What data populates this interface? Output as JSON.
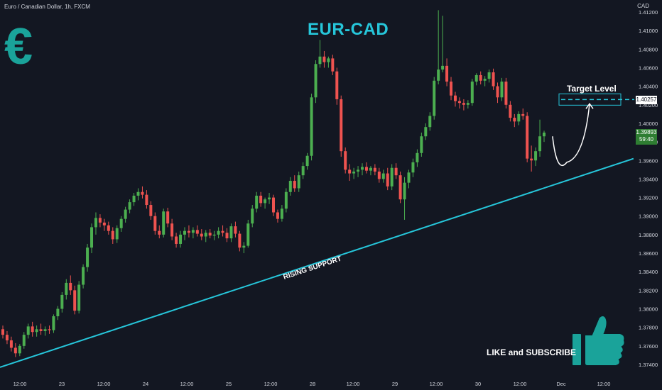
{
  "header": {
    "symbol_title": "Euro / Canadian Dollar, 1h, FXCM"
  },
  "axis": {
    "unit": "CAD"
  },
  "overlay": {
    "title": "EUR-CAD",
    "currency_glyph": "€",
    "target_label": "Target Level",
    "support_label": "RISING SUPPORT",
    "cta": "LIKE and SUBSCRIBE",
    "thumbs_up_icon": "thumbs-up-icon"
  },
  "badges": {
    "target_price": "1.40257",
    "current_price": "1.39893",
    "countdown": "59:40"
  },
  "colors": {
    "background": "#131722",
    "up": "#4caf50",
    "down": "#ef5350",
    "accent": "#26c6da",
    "teal": "#1aa39a",
    "text": "#d1d4dc"
  },
  "chart_data": {
    "type": "candlestick",
    "ylim": [
      1.3735,
      1.4125
    ],
    "y_ticks": [
      "1.41200",
      "1.41000",
      "1.40800",
      "1.40600",
      "1.40400",
      "1.40200",
      "1.40000",
      "1.39800",
      "1.39600",
      "1.39400",
      "1.39200",
      "1.39000",
      "1.38800",
      "1.38600",
      "1.38400",
      "1.38200",
      "1.38000",
      "1.37800",
      "1.37600",
      "1.37400"
    ],
    "x_ticks": [
      "12:00",
      "23",
      "12:00",
      "24",
      "12:00",
      "25",
      "12:00",
      "28",
      "12:00",
      "29",
      "12:00",
      "30",
      "12:00",
      "Dec",
      "12:00"
    ],
    "target_level": 1.40257,
    "last_price": 1.39893,
    "support_line": {
      "start": [
        0,
        1.3737
      ],
      "end": [
        131,
        1.3962
      ]
    },
    "projection": {
      "from": [
        130,
        1.3986
      ],
      "low": [
        136,
        1.3958
      ],
      "to": [
        141,
        1.4026
      ]
    },
    "ohlc": [
      [
        1.3778,
        1.3782,
        1.3768,
        1.3772
      ],
      [
        1.3772,
        1.3776,
        1.3762,
        1.3766
      ],
      [
        1.3766,
        1.377,
        1.3754,
        1.3758
      ],
      [
        1.3758,
        1.3763,
        1.3748,
        1.3752
      ],
      [
        1.3752,
        1.3762,
        1.3749,
        1.376
      ],
      [
        1.376,
        1.3775,
        1.3757,
        1.3772
      ],
      [
        1.3772,
        1.3784,
        1.3768,
        1.3781
      ],
      [
        1.3781,
        1.3786,
        1.377,
        1.3775
      ],
      [
        1.3775,
        1.3782,
        1.377,
        1.3778
      ],
      [
        1.3778,
        1.3784,
        1.3772,
        1.3776
      ],
      [
        1.3776,
        1.3781,
        1.3771,
        1.3778
      ],
      [
        1.3778,
        1.3782,
        1.3773,
        1.3777
      ],
      [
        1.3777,
        1.3794,
        1.3774,
        1.3792
      ],
      [
        1.3792,
        1.3803,
        1.3788,
        1.38
      ],
      [
        1.38,
        1.3818,
        1.3796,
        1.3815
      ],
      [
        1.3815,
        1.3832,
        1.381,
        1.3828
      ],
      [
        1.3828,
        1.3836,
        1.3815,
        1.382
      ],
      [
        1.382,
        1.3825,
        1.3794,
        1.3798
      ],
      [
        1.3798,
        1.383,
        1.3795,
        1.3826
      ],
      [
        1.3826,
        1.3848,
        1.3822,
        1.3845
      ],
      [
        1.3845,
        1.387,
        1.384,
        1.3866
      ],
      [
        1.3866,
        1.3892,
        1.386,
        1.3888
      ],
      [
        1.3888,
        1.3904,
        1.388,
        1.3898
      ],
      [
        1.3898,
        1.3902,
        1.3888,
        1.3893
      ],
      [
        1.3893,
        1.3897,
        1.3884,
        1.389
      ],
      [
        1.389,
        1.3894,
        1.388,
        1.3884
      ],
      [
        1.3884,
        1.3888,
        1.387,
        1.3875
      ],
      [
        1.3875,
        1.389,
        1.3871,
        1.3887
      ],
      [
        1.3887,
        1.39,
        1.3883,
        1.3897
      ],
      [
        1.3897,
        1.391,
        1.3893,
        1.3907
      ],
      [
        1.3907,
        1.3918,
        1.3903,
        1.3915
      ],
      [
        1.3915,
        1.3925,
        1.3911,
        1.3922
      ],
      [
        1.3922,
        1.393,
        1.3917,
        1.3926
      ],
      [
        1.3926,
        1.3932,
        1.3919,
        1.3923
      ],
      [
        1.3923,
        1.3928,
        1.3908,
        1.3912
      ],
      [
        1.3912,
        1.3916,
        1.3896,
        1.39
      ],
      [
        1.39,
        1.3904,
        1.388,
        1.3884
      ],
      [
        1.3884,
        1.389,
        1.3876,
        1.388
      ],
      [
        1.388,
        1.3908,
        1.3877,
        1.3905
      ],
      [
        1.3905,
        1.3909,
        1.3888,
        1.3892
      ],
      [
        1.3892,
        1.3897,
        1.3874,
        1.3878
      ],
      [
        1.3878,
        1.3882,
        1.3866,
        1.387
      ],
      [
        1.387,
        1.3884,
        1.3866,
        1.388
      ],
      [
        1.388,
        1.3888,
        1.3874,
        1.3884
      ],
      [
        1.3884,
        1.389,
        1.3877,
        1.3882
      ],
      [
        1.3882,
        1.3888,
        1.3876,
        1.3885
      ],
      [
        1.3885,
        1.389,
        1.3878,
        1.3881
      ],
      [
        1.3881,
        1.3886,
        1.3874,
        1.3878
      ],
      [
        1.3878,
        1.3885,
        1.3872,
        1.3882
      ],
      [
        1.3882,
        1.3886,
        1.3876,
        1.3879
      ],
      [
        1.3879,
        1.3884,
        1.3874,
        1.388
      ],
      [
        1.388,
        1.3888,
        1.3876,
        1.3884
      ],
      [
        1.3884,
        1.389,
        1.3878,
        1.3882
      ],
      [
        1.3882,
        1.3887,
        1.3872,
        1.3876
      ],
      [
        1.3876,
        1.3892,
        1.3872,
        1.3889
      ],
      [
        1.3889,
        1.3894,
        1.3877,
        1.3881
      ],
      [
        1.3881,
        1.3884,
        1.3862,
        1.3866
      ],
      [
        1.3866,
        1.3872,
        1.386,
        1.3868
      ],
      [
        1.3868,
        1.3896,
        1.3866,
        1.3892
      ],
      [
        1.3892,
        1.3912,
        1.3888,
        1.3908
      ],
      [
        1.3908,
        1.3926,
        1.3904,
        1.3922
      ],
      [
        1.3922,
        1.3926,
        1.391,
        1.3914
      ],
      [
        1.3914,
        1.392,
        1.3908,
        1.3918
      ],
      [
        1.3918,
        1.3925,
        1.3913,
        1.392
      ],
      [
        1.392,
        1.3923,
        1.39,
        1.3904
      ],
      [
        1.3904,
        1.3907,
        1.3893,
        1.3897
      ],
      [
        1.3897,
        1.3912,
        1.3894,
        1.3908
      ],
      [
        1.3908,
        1.393,
        1.3904,
        1.3926
      ],
      [
        1.3926,
        1.3942,
        1.3922,
        1.3938
      ],
      [
        1.3938,
        1.3944,
        1.3926,
        1.393
      ],
      [
        1.393,
        1.3948,
        1.3926,
        1.3944
      ],
      [
        1.3944,
        1.3958,
        1.394,
        1.3954
      ],
      [
        1.3954,
        1.3968,
        1.395,
        1.3965
      ],
      [
        1.3965,
        1.4032,
        1.396,
        1.4028
      ],
      [
        1.4028,
        1.4068,
        1.4022,
        1.4064
      ],
      [
        1.4064,
        1.409,
        1.406,
        1.4072
      ],
      [
        1.4072,
        1.4078,
        1.406,
        1.4066
      ],
      [
        1.4066,
        1.4072,
        1.406,
        1.407
      ],
      [
        1.407,
        1.4074,
        1.4052,
        1.4056
      ],
      [
        1.4056,
        1.406,
        1.402,
        1.4026
      ],
      [
        1.4026,
        1.403,
        1.3964,
        1.397
      ],
      [
        1.397,
        1.3974,
        1.3946,
        1.395
      ],
      [
        1.395,
        1.3956,
        1.3938,
        1.3946
      ],
      [
        1.3946,
        1.3952,
        1.394,
        1.3948
      ],
      [
        1.3948,
        1.3954,
        1.3942,
        1.395
      ],
      [
        1.395,
        1.3957,
        1.3944,
        1.3953
      ],
      [
        1.3953,
        1.3958,
        1.3946,
        1.3949
      ],
      [
        1.3949,
        1.3954,
        1.3944,
        1.3952
      ],
      [
        1.3952,
        1.3956,
        1.3944,
        1.3948
      ],
      [
        1.3948,
        1.3952,
        1.3936,
        1.394
      ],
      [
        1.394,
        1.395,
        1.3936,
        1.3946
      ],
      [
        1.3946,
        1.3952,
        1.3928,
        1.3932
      ],
      [
        1.3932,
        1.3956,
        1.3928,
        1.3952
      ],
      [
        1.3952,
        1.3957,
        1.394,
        1.3944
      ],
      [
        1.3944,
        1.3948,
        1.3914,
        1.3918
      ],
      [
        1.3918,
        1.3942,
        1.3896,
        1.3936
      ],
      [
        1.3936,
        1.395,
        1.393,
        1.3947
      ],
      [
        1.3947,
        1.3962,
        1.3942,
        1.3958
      ],
      [
        1.3958,
        1.3972,
        1.3953,
        1.3968
      ],
      [
        1.3968,
        1.399,
        1.3964,
        1.3986
      ],
      [
        1.3986,
        1.4,
        1.3982,
        1.3996
      ],
      [
        1.3996,
        1.4012,
        1.3992,
        1.4008
      ],
      [
        1.4008,
        1.405,
        1.4004,
        1.4046
      ],
      [
        1.4046,
        1.4122,
        1.4042,
        1.4058
      ],
      [
        1.4058,
        1.4116,
        1.4055,
        1.4062
      ],
      [
        1.4062,
        1.407,
        1.404,
        1.4045
      ],
      [
        1.4045,
        1.405,
        1.4025,
        1.403
      ],
      [
        1.403,
        1.4034,
        1.4018,
        1.4024
      ],
      [
        1.4024,
        1.4028,
        1.4016,
        1.4022
      ],
      [
        1.4022,
        1.4026,
        1.4014,
        1.402
      ],
      [
        1.402,
        1.4025,
        1.4016,
        1.4022
      ],
      [
        1.4022,
        1.4048,
        1.4019,
        1.4045
      ],
      [
        1.4045,
        1.4054,
        1.4041,
        1.4052
      ],
      [
        1.4052,
        1.4056,
        1.4042,
        1.4046
      ],
      [
        1.4046,
        1.4051,
        1.404,
        1.4048
      ],
      [
        1.4048,
        1.4058,
        1.4044,
        1.4055
      ],
      [
        1.4055,
        1.4059,
        1.4036,
        1.404
      ],
      [
        1.404,
        1.4044,
        1.4022,
        1.4028
      ],
      [
        1.4028,
        1.4049,
        1.4024,
        1.4045
      ],
      [
        1.4045,
        1.4049,
        1.4016,
        1.402
      ],
      [
        1.402,
        1.4024,
        1.4002,
        1.4006
      ],
      [
        1.4006,
        1.401,
        1.3996,
        1.4002
      ],
      [
        1.4002,
        1.4013,
        1.3998,
        1.401
      ],
      [
        1.401,
        1.4016,
        1.4004,
        1.4008
      ],
      [
        1.4008,
        1.4012,
        1.3958,
        1.3962
      ],
      [
        1.3962,
        1.3976,
        1.3948,
        1.396
      ],
      [
        1.396,
        1.3974,
        1.3954,
        1.397
      ],
      [
        1.397,
        1.4004,
        1.3964,
        1.3986
      ],
      [
        1.3986,
        1.3992,
        1.398,
        1.399
      ]
    ]
  }
}
